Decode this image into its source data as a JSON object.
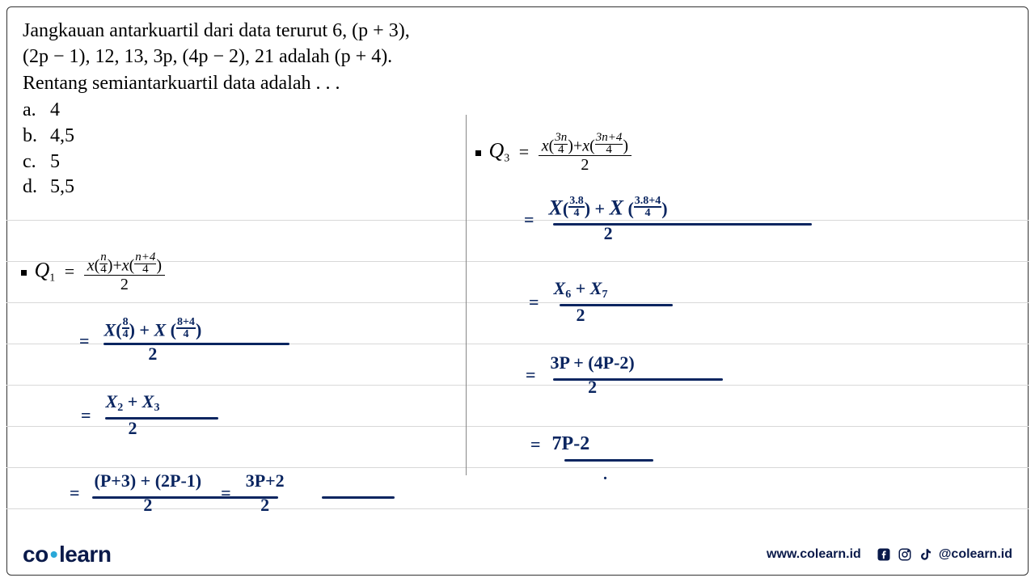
{
  "question": {
    "line1": "Jangkauan antarkuartil dari data terurut 6, (p + 3),",
    "line2": "(2p − 1), 12, 13, 3p, (4p − 2), 21 adalah (p + 4).",
    "line3": "Rentang semiantarkuartil data adalah . . ."
  },
  "options": {
    "a": "4",
    "b": "4,5",
    "c": "5",
    "d": "5,5"
  },
  "formulas": {
    "q1_label": "Q",
    "q1_sub": "1",
    "q1_num_prefix": "x",
    "q1_num_paren1_n": "n",
    "q1_num_paren1_d": "4",
    "q1_plus": "+",
    "q1_num_paren2_n": "n+4",
    "q1_num_paren2_d": "4",
    "q1_den": "2",
    "q3_label": "Q",
    "q3_sub": "3",
    "q3_num_paren1_n": "3n",
    "q3_num_paren1_d": "4",
    "q3_num_paren2_n": "3n+4",
    "q3_num_paren2_d": "4",
    "q3_den": "2"
  },
  "handwritten": {
    "q1_step1_num": "X(⁸⁄₄) + X (⁸⁺⁴⁄₄)",
    "q1_step1_den": "2",
    "q1_step2_num": "X₂ + X₃",
    "q1_step2_den": "2",
    "q1_step3_num": "(P+3) + (2P-1)",
    "q1_step3_den": "2",
    "q1_step3_rhs_num": "3P+2",
    "q1_step3_rhs_den": "2",
    "q3_step1_num": "X(³·⁸⁄₄) + X (³·⁸⁺⁴⁄₄)",
    "q3_step1_den": "2",
    "q3_step2_num": "X₆ + X₇",
    "q3_step2_den": "2",
    "q3_step3_num": "3P + (4P-2)",
    "q3_step3_den": "2",
    "q3_step4": "7P-2"
  },
  "footer": {
    "logo_co": "co",
    "logo_learn": "learn",
    "url": "www.colearn.id",
    "handle": "@colearn.id"
  },
  "colors": {
    "ink": "#0a2560",
    "text": "#000000",
    "rule": "#d8d8d8",
    "brand": "#0a1a4a",
    "accent": "#2aa8d8"
  },
  "layout": {
    "ruled_line_start": 258,
    "ruled_line_gap": 51,
    "ruled_line_count": 8
  }
}
